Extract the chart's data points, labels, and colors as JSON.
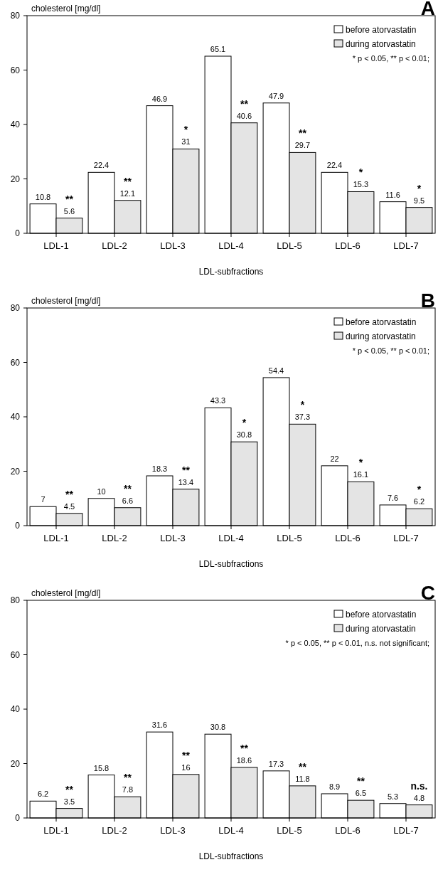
{
  "chart_data": [
    {
      "type": "bar",
      "title": "A",
      "ylabel": "cholesterol [mg/dl]",
      "xlabel": "LDL-subfractions",
      "categories": [
        "LDL-1",
        "LDL-2",
        "LDL-3",
        "LDL-4",
        "LDL-5",
        "LDL-6",
        "LDL-7"
      ],
      "series": [
        {
          "name": "before atorvastatin",
          "color": "#ffffff",
          "values": [
            10.8,
            22.4,
            46.9,
            65.1,
            47.9,
            22.4,
            11.6
          ]
        },
        {
          "name": "during atorvastatin",
          "color": "#e4e4e4",
          "values": [
            5.6,
            12.1,
            31,
            40.6,
            29.7,
            15.3,
            9.5
          ]
        }
      ],
      "ylim": [
        0,
        80
      ],
      "yticks": [
        0,
        20,
        40,
        60,
        80
      ],
      "data_labels": true,
      "legend": "top right",
      "grid": false,
      "annotations": [
        "* p < 0.05,  ** p < 0.01;",
        {
          "text": "**",
          "x": "LDL-1",
          "y": 5.6
        },
        {
          "text": "**",
          "x": "LDL-2",
          "y": 12.1
        },
        {
          "text": "*",
          "x": "LDL-3",
          "y": 31
        },
        {
          "text": "**",
          "x": "LDL-4",
          "y": 40.6
        },
        {
          "text": "**",
          "x": "LDL-5",
          "y": 29.7
        },
        {
          "text": "*",
          "x": "LDL-6",
          "y": 15.3
        },
        {
          "text": "*",
          "x": "LDL-7",
          "y": 9.5
        }
      ]
    },
    {
      "type": "bar",
      "title": "B",
      "ylabel": "cholesterol [mg/dl]",
      "xlabel": "LDL-subfractions",
      "categories": [
        "LDL-1",
        "LDL-2",
        "LDL-3",
        "LDL-4",
        "LDL-5",
        "LDL-6",
        "LDL-7"
      ],
      "series": [
        {
          "name": "before atorvastatin",
          "color": "#ffffff",
          "values": [
            7,
            10,
            18.3,
            43.3,
            54.4,
            22,
            7.6
          ]
        },
        {
          "name": "during atorvastatin",
          "color": "#e4e4e4",
          "values": [
            4.5,
            6.6,
            13.4,
            30.8,
            37.3,
            16.1,
            6.2
          ]
        }
      ],
      "ylim": [
        0,
        80
      ],
      "yticks": [
        0,
        20,
        40,
        60,
        80
      ],
      "data_labels": true,
      "legend": "top right",
      "grid": false,
      "annotations": [
        "* p < 0.05,  ** p < 0.01;",
        {
          "text": "**",
          "x": "LDL-1",
          "y": 4.5
        },
        {
          "text": "**",
          "x": "LDL-2",
          "y": 6.6
        },
        {
          "text": "**",
          "x": "LDL-3",
          "y": 13.4
        },
        {
          "text": "*",
          "x": "LDL-4",
          "y": 30.8
        },
        {
          "text": "*",
          "x": "LDL-5",
          "y": 37.3
        },
        {
          "text": "*",
          "x": "LDL-6",
          "y": 16.1
        },
        {
          "text": "*",
          "x": "LDL-7",
          "y": 6.2
        }
      ]
    },
    {
      "type": "bar",
      "title": "C",
      "ylabel": "cholesterol [mg/dl]",
      "xlabel": "LDL-subfractions",
      "categories": [
        "LDL-1",
        "LDL-2",
        "LDL-3",
        "LDL-4",
        "LDL-5",
        "LDL-6",
        "LDL-7"
      ],
      "series": [
        {
          "name": "before atorvastatin",
          "color": "#ffffff",
          "values": [
            6.2,
            15.8,
            31.6,
            30.8,
            17.3,
            8.9,
            5.3
          ]
        },
        {
          "name": "during atorvastatin",
          "color": "#e4e4e4",
          "values": [
            3.5,
            7.8,
            16,
            18.6,
            11.8,
            6.5,
            4.8
          ]
        }
      ],
      "ylim": [
        0,
        80
      ],
      "yticks": [
        0,
        20,
        40,
        60,
        80
      ],
      "data_labels": true,
      "legend": "top right",
      "grid": false,
      "annotations": [
        "* p < 0.05,  ** p < 0.01, n.s. not significant;",
        {
          "text": "**",
          "x": "LDL-1",
          "y": 3.5
        },
        {
          "text": "**",
          "x": "LDL-2",
          "y": 7.8
        },
        {
          "text": "**",
          "x": "LDL-3",
          "y": 16
        },
        {
          "text": "**",
          "x": "LDL-4",
          "y": 18.6
        },
        {
          "text": "**",
          "x": "LDL-5",
          "y": 11.8
        },
        {
          "text": "**",
          "x": "LDL-6",
          "y": 6.5
        },
        {
          "text": "n.s.",
          "x": "LDL-7",
          "y": 4.8
        }
      ]
    }
  ]
}
